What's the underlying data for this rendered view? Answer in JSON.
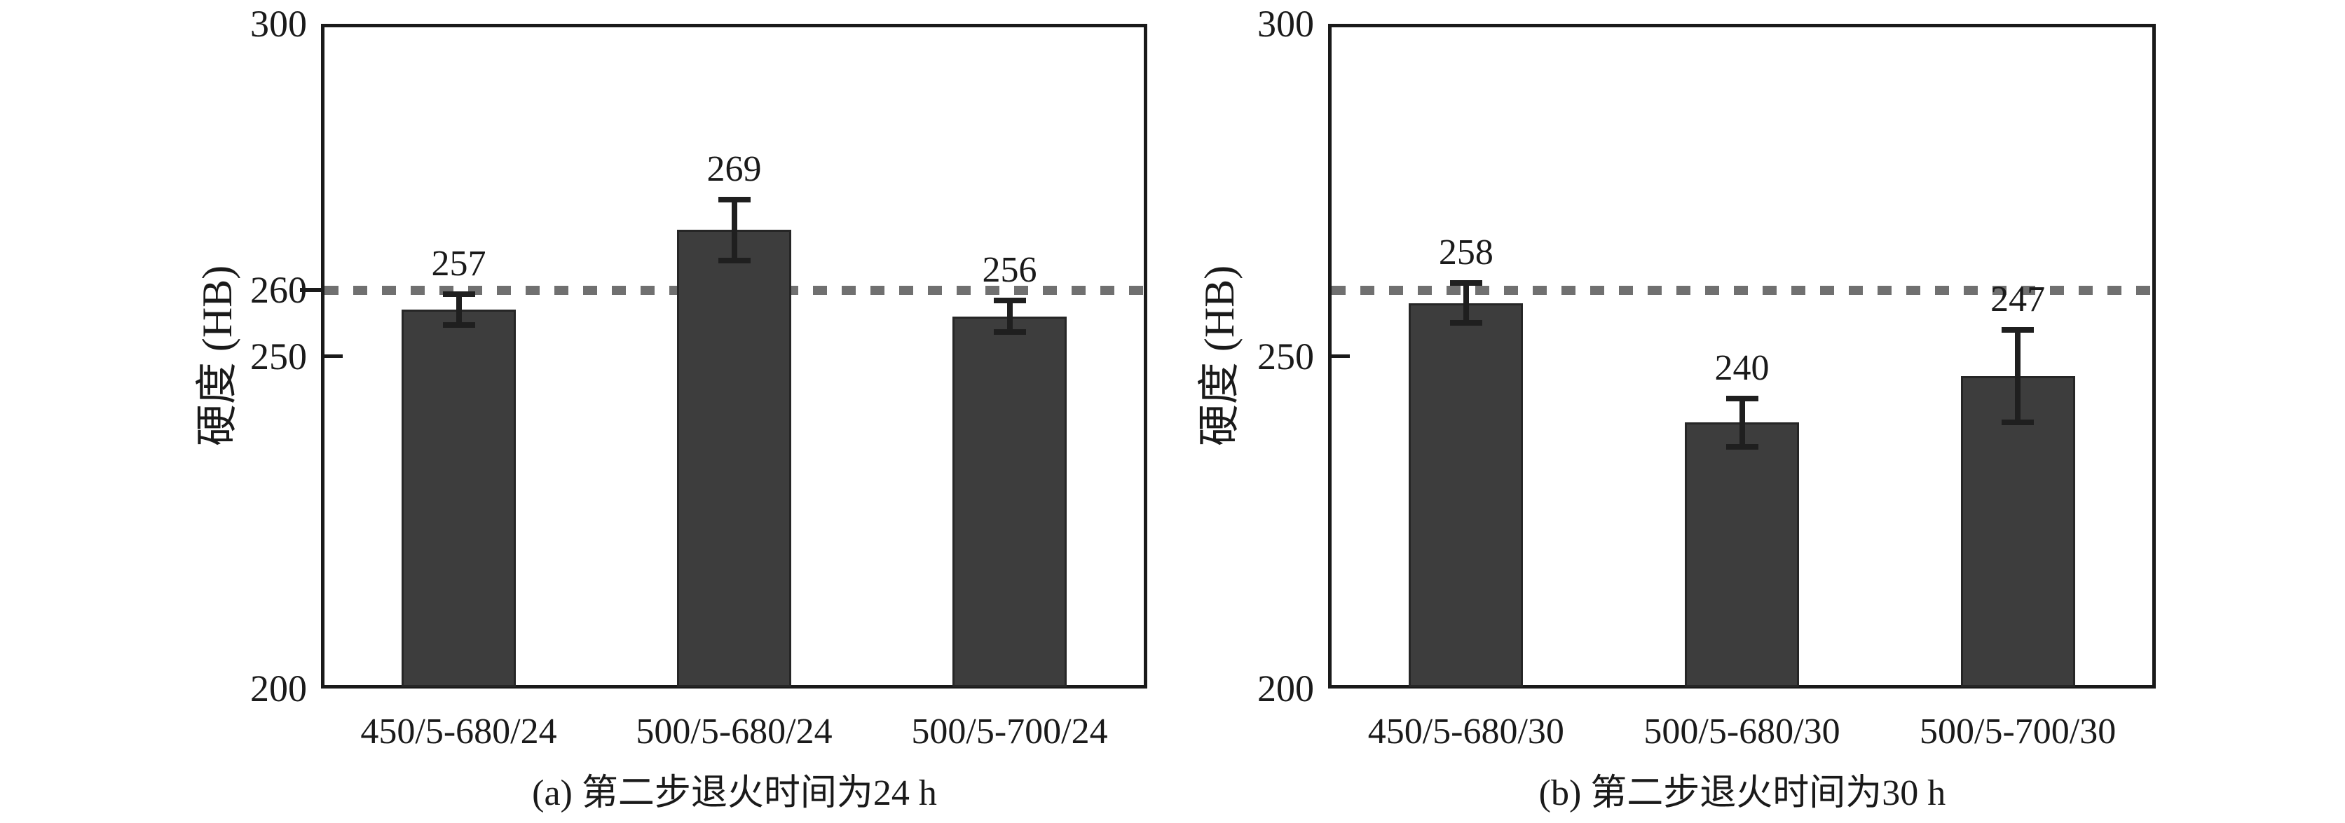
{
  "figure": {
    "background": "#ffffff",
    "text_color": "#1a1a1a",
    "bar_color": "#3d3d3d",
    "bar_border_color": "#262626",
    "frame_color": "#1a1a1a",
    "error_bar_color": "#1f1f1f",
    "reference_line_color": "#707070"
  },
  "chart_data": [
    {
      "type": "bar",
      "panel": "a",
      "caption": "(a) 第二步退火时间为24 h",
      "ylabel": "硬度 (HB)",
      "ylim": [
        200,
        300
      ],
      "grid": false,
      "legend": "none",
      "yticks": [
        {
          "value": 300,
          "label": "300",
          "mark": "none"
        },
        {
          "value": 260,
          "label": "260",
          "mark": "outward"
        },
        {
          "value": 250,
          "label": "250",
          "mark": "inward"
        },
        {
          "value": 200,
          "label": "200",
          "mark": "none"
        }
      ],
      "categories": [
        "450/5-680/24",
        "500/5-680/24",
        "500/5-700/24"
      ],
      "values": [
        257,
        269,
        256
      ],
      "errors": [
        2.3,
        4.6,
        2.4
      ],
      "value_labels": [
        "257",
        "269",
        "256"
      ],
      "reference_line": 260
    },
    {
      "type": "bar",
      "panel": "b",
      "caption": "(b) 第二步退火时间为30 h",
      "ylabel": "硬度 (HB)",
      "ylim": [
        200,
        300
      ],
      "grid": false,
      "legend": "none",
      "yticks": [
        {
          "value": 300,
          "label": "300",
          "mark": "none"
        },
        {
          "value": 250,
          "label": "250",
          "mark": "inward"
        },
        {
          "value": 200,
          "label": "200",
          "mark": "none"
        }
      ],
      "categories": [
        "450/5-680/30",
        "500/5-680/30",
        "500/5-700/30"
      ],
      "values": [
        258,
        240,
        247
      ],
      "errors": [
        3.0,
        3.6,
        7.0
      ],
      "value_labels": [
        "258",
        "240",
        "247"
      ],
      "reference_line": 260
    }
  ]
}
